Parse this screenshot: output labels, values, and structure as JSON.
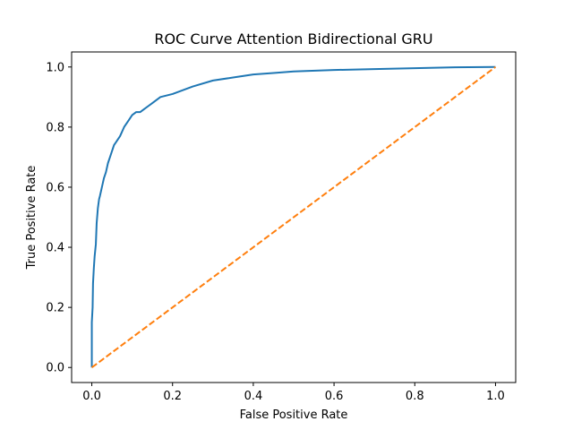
{
  "chart_data": {
    "type": "line",
    "title": "ROC Curve Attention Bidirectional GRU",
    "xlabel": "False Positive Rate",
    "ylabel": "True Positive Rate",
    "xlim": [
      -0.05,
      1.05
    ],
    "ylim": [
      -0.05,
      1.05
    ],
    "xticks": [
      0.0,
      0.2,
      0.4,
      0.6,
      0.8,
      1.0
    ],
    "yticks": [
      0.0,
      0.2,
      0.4,
      0.6,
      0.8,
      1.0
    ],
    "xtick_labels": [
      "0.0",
      "0.2",
      "0.4",
      "0.6",
      "0.8",
      "1.0"
    ],
    "ytick_labels": [
      "0.0",
      "0.2",
      "0.4",
      "0.6",
      "0.8",
      "1.0"
    ],
    "grid": false,
    "legend": false,
    "series": [
      {
        "color": "#1f77b4",
        "line_style": "solid",
        "x": [
          0.0,
          0.0,
          0.002,
          0.003,
          0.005,
          0.007,
          0.01,
          0.012,
          0.015,
          0.018,
          0.02,
          0.025,
          0.03,
          0.035,
          0.04,
          0.045,
          0.05,
          0.055,
          0.06,
          0.07,
          0.08,
          0.09,
          0.1,
          0.11,
          0.12,
          0.13,
          0.14,
          0.15,
          0.17,
          0.2,
          0.25,
          0.3,
          0.35,
          0.4,
          0.45,
          0.5,
          0.6,
          0.7,
          0.8,
          0.9,
          1.0
        ],
        "y": [
          0.0,
          0.15,
          0.2,
          0.28,
          0.33,
          0.37,
          0.41,
          0.48,
          0.53,
          0.56,
          0.57,
          0.6,
          0.63,
          0.65,
          0.68,
          0.7,
          0.72,
          0.74,
          0.75,
          0.77,
          0.8,
          0.82,
          0.84,
          0.85,
          0.85,
          0.86,
          0.87,
          0.88,
          0.9,
          0.91,
          0.935,
          0.955,
          0.965,
          0.975,
          0.98,
          0.985,
          0.99,
          0.993,
          0.996,
          0.999,
          1.0
        ]
      },
      {
        "color": "#ff7f0e",
        "line_style": "dashed",
        "x": [
          0.0,
          1.0
        ],
        "y": [
          0.0,
          1.0
        ]
      }
    ]
  }
}
